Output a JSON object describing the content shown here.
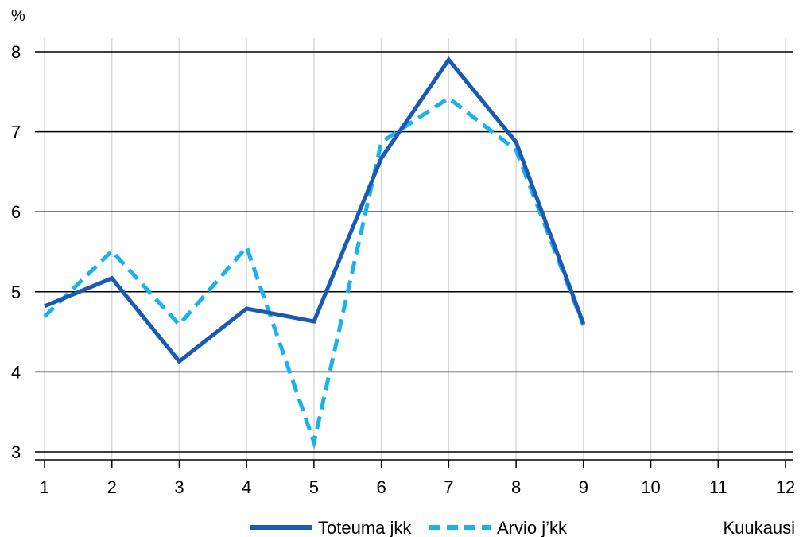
{
  "chart_data": {
    "type": "line",
    "ylabel": "%",
    "xlabel": "Kuukausi",
    "x": [
      1,
      2,
      3,
      4,
      5,
      6,
      7,
      8,
      9,
      10,
      11,
      12
    ],
    "x_tick_labels": [
      "1",
      "2",
      "3",
      "4",
      "5",
      "6",
      "7",
      "8",
      "9",
      "10",
      "11",
      "12"
    ],
    "y_tick_labels": [
      "3",
      "4",
      "5",
      "6",
      "7",
      "8"
    ],
    "ylim": [
      3,
      8
    ],
    "xlim": [
      1,
      12
    ],
    "grid": true,
    "legend_position": "bottom",
    "series": [
      {
        "name": "Toteuma jkk",
        "style": "solid",
        "color": "#1a5ab5",
        "x": [
          1,
          2,
          3,
          4,
          5,
          6,
          7,
          8,
          9
        ],
        "values": [
          4.82,
          5.17,
          4.13,
          4.79,
          4.63,
          6.67,
          7.9,
          6.87,
          4.6
        ]
      },
      {
        "name": "Arvio j’kk",
        "style": "dashed",
        "color": "#1ab2ec",
        "x": [
          1,
          2,
          3,
          4,
          5,
          6,
          7,
          8,
          9
        ],
        "values": [
          4.69,
          5.51,
          4.59,
          5.56,
          3.12,
          6.87,
          7.42,
          6.77,
          4.58
        ]
      }
    ]
  }
}
